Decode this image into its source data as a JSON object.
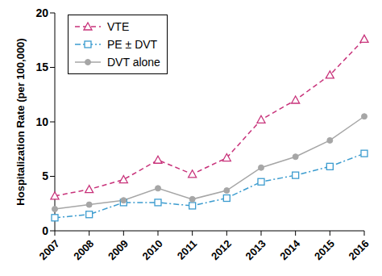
{
  "chart_data": {
    "type": "line",
    "y_label": "Hospitalization Rate (per 100,000)",
    "categories": [
      "2007",
      "2008",
      "2009",
      "2010",
      "2011",
      "2012",
      "2013",
      "2014",
      "2015",
      "2016"
    ],
    "series": [
      {
        "name": "VTE",
        "color": "#c8327a",
        "marker": "triangle",
        "line_style": "dashed",
        "values": [
          3.2,
          3.8,
          4.7,
          6.5,
          5.2,
          6.7,
          10.2,
          12.0,
          14.3,
          17.6
        ]
      },
      {
        "name": "PE ± DVT",
        "color": "#3c9ccf",
        "marker": "square",
        "line_style": "dashdot",
        "values": [
          1.2,
          1.5,
          2.6,
          2.6,
          2.3,
          3.0,
          4.5,
          5.1,
          5.9,
          7.1
        ]
      },
      {
        "name": "DVT alone",
        "color": "#a6a6a6",
        "marker": "circle",
        "line_style": "solid",
        "values": [
          2.0,
          2.4,
          2.8,
          3.9,
          2.9,
          3.7,
          5.8,
          6.8,
          8.3,
          10.5
        ]
      }
    ],
    "ylim": [
      0,
      20
    ],
    "yticks": [
      0,
      5,
      10,
      15,
      20
    ],
    "grid": false,
    "legend": "upper left"
  }
}
